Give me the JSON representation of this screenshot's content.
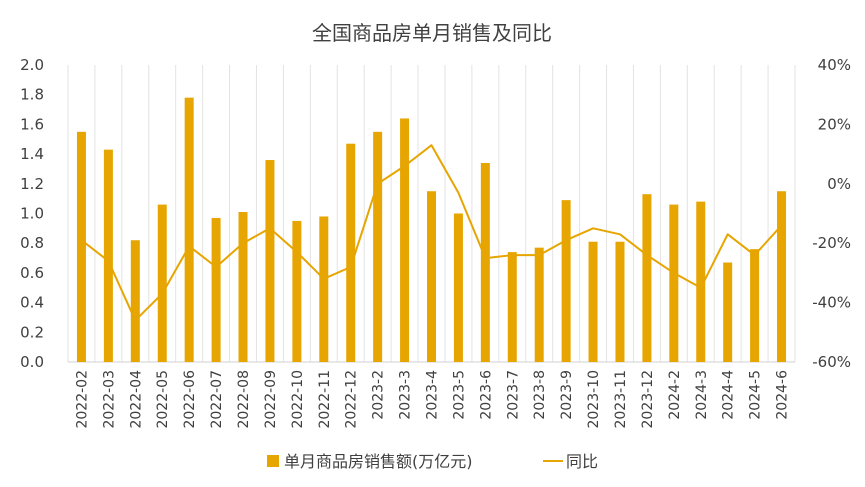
{
  "chart_data": {
    "type": "bar",
    "title": "全国商品房单月销售及同比",
    "categories": [
      "2022-02",
      "2022-03",
      "2022-04",
      "2022-05",
      "2022-06",
      "2022-07",
      "2022-08",
      "2022-09",
      "2022-10",
      "2022-11",
      "2022-12",
      "2023-2",
      "2023-3",
      "2023-4",
      "2023-5",
      "2023-6",
      "2023-7",
      "2023-8",
      "2023-9",
      "2023-10",
      "2023-11",
      "2023-12",
      "2024-2",
      "2024-3",
      "2024-4",
      "2024-5",
      "2024-6"
    ],
    "series": [
      {
        "name": "单月商品房销售额(万亿元)",
        "type": "bar",
        "axis": "left",
        "color": "#E6A500",
        "values": [
          1.55,
          1.43,
          0.82,
          1.06,
          1.78,
          0.97,
          1.01,
          1.36,
          0.95,
          0.98,
          1.47,
          1.55,
          1.64,
          1.15,
          1.0,
          1.34,
          0.74,
          0.77,
          1.09,
          0.81,
          0.81,
          1.13,
          1.06,
          1.08,
          0.67,
          0.76,
          1.15
        ]
      },
      {
        "name": "同比",
        "type": "line",
        "axis": "right",
        "color": "#E6A500",
        "values": [
          -19,
          -26,
          -46,
          -37,
          -21,
          -28,
          -20,
          -15,
          -23,
          -32,
          -28,
          0,
          6,
          13,
          -3,
          -25,
          -24,
          -24,
          -19,
          -15,
          -17,
          -24,
          -30,
          -35,
          -17,
          -24,
          -14
        ]
      }
    ],
    "ylim_left": [
      0,
      2.0
    ],
    "yticks_left": [
      "0.0",
      "0.2",
      "0.4",
      "0.6",
      "0.8",
      "1.0",
      "1.2",
      "1.4",
      "1.6",
      "1.8",
      "2.0"
    ],
    "ylim_right": [
      -60,
      40
    ],
    "yticks_right": [
      "-60%",
      "-40%",
      "-20%",
      "0%",
      "20%",
      "40%"
    ],
    "grid": true,
    "legend_position": "bottom"
  }
}
